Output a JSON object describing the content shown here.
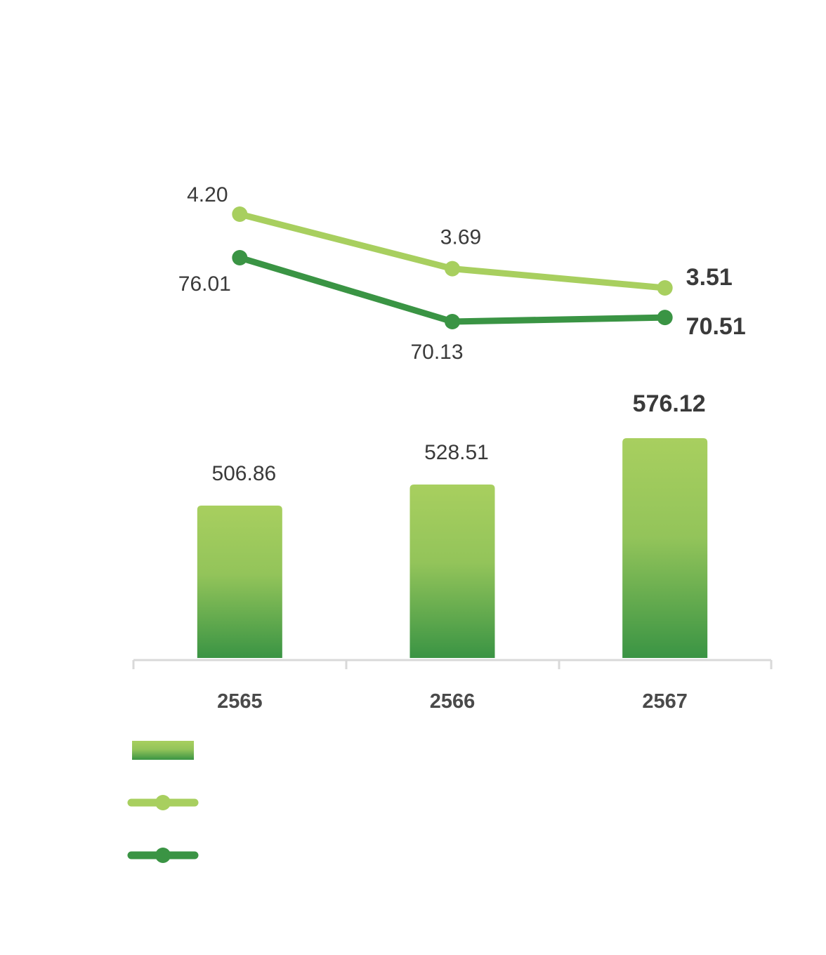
{
  "chart_data": {
    "type": "bar",
    "categories": [
      "2565",
      "2566",
      "2567"
    ],
    "bars": {
      "values": [
        506.86,
        528.51,
        576.12
      ],
      "labels": [
        "506.86",
        "528.51",
        "576.12"
      ],
      "color_top": "#a8cf5f",
      "color_bottom": "#3a9444"
    },
    "lines": [
      {
        "values": [
          4.2,
          3.69,
          3.51
        ],
        "labels": [
          "4.20",
          "3.69",
          "3.51"
        ],
        "color": "#a8cf5f"
      },
      {
        "values": [
          76.01,
          70.13,
          70.51
        ],
        "labels": [
          "76.01",
          "70.13",
          "70.51"
        ],
        "color": "#3a9444"
      }
    ],
    "title": "",
    "xlabel": "",
    "ylabel": "",
    "grid": false,
    "legend_placement": "bottom-left",
    "axis_color": "#d9d9d9"
  }
}
